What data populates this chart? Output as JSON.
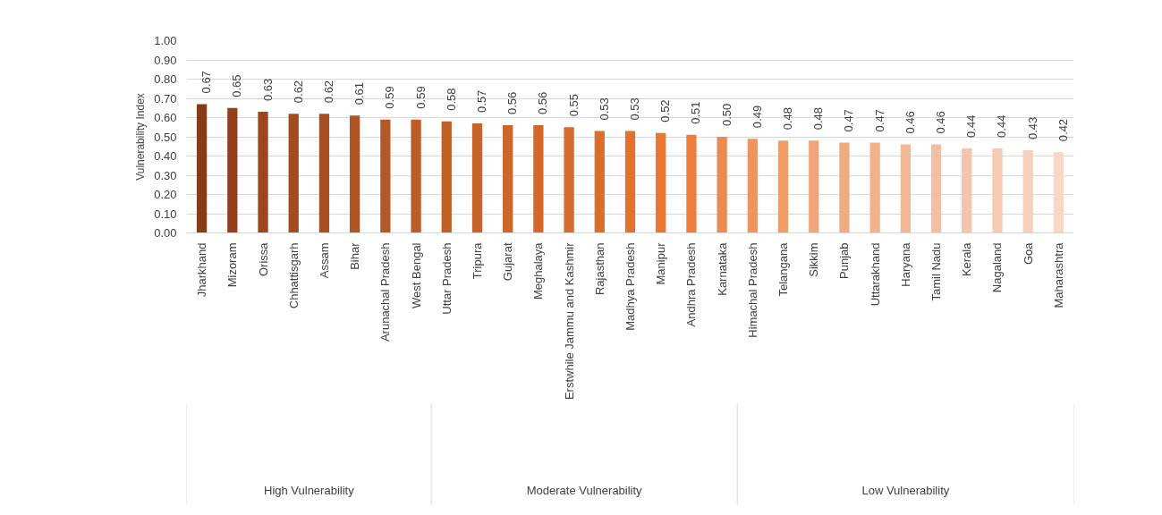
{
  "chart_data": {
    "type": "bar",
    "ylabel": "Vulnerability Index",
    "categories": [
      "Jharkhand",
      "Mizoram",
      "Orissa",
      "Chhattisgarh",
      "Assam",
      "Bihar",
      "Arunachal Pradesh",
      "West Bengal",
      "Uttar Pradesh",
      "Tripura",
      "Gujarat",
      "Meghalaya",
      "Erstwhile Jammu and Kashmir",
      "Rajasthan",
      "Madhya Pradesh",
      "Manipur",
      "Andhra Pradesh",
      "Karnataka",
      "Himachal Pradesh",
      "Telangana",
      "Sikkim",
      "Punjab",
      "Uttarakhand",
      "Haryana",
      "Tamil Nadu",
      "Kerala",
      "Nagaland",
      "Goa",
      "Maharashtra"
    ],
    "values": [
      0.67,
      0.65,
      0.63,
      0.62,
      0.62,
      0.61,
      0.59,
      0.59,
      0.58,
      0.57,
      0.56,
      0.56,
      0.55,
      0.53,
      0.53,
      0.52,
      0.51,
      0.5,
      0.49,
      0.48,
      0.48,
      0.47,
      0.47,
      0.46,
      0.46,
      0.44,
      0.44,
      0.43,
      0.42
    ],
    "value_labels": [
      "0.67",
      "0.65",
      "0.63",
      "0.62",
      "0.62",
      "0.61",
      "0.59",
      "0.59",
      "0.58",
      "0.57",
      "0.56",
      "0.56",
      "0.55",
      "0.53",
      "0.53",
      "0.52",
      "0.51",
      "0.50",
      "0.49",
      "0.48",
      "0.48",
      "0.47",
      "0.47",
      "0.46",
      "0.46",
      "0.44",
      "0.44",
      "0.43",
      "0.42"
    ],
    "colors": [
      "#863c16",
      "#91421c",
      "#9a471e",
      "#a24c20",
      "#a95022",
      "#af5423",
      "#b65825",
      "#bc5c27",
      "#c26028",
      "#c8632a",
      "#ce662a",
      "#d2682b",
      "#d76b2c",
      "#dc6e2d",
      "#e2722d",
      "#e8762e",
      "#ec7d3a",
      "#ed8a52",
      "#ee955f",
      "#ef9d6b",
      "#f0a477",
      "#f1ab82",
      "#f2b18c",
      "#f3b796",
      "#f4bea0",
      "#f5c4aa",
      "#f6cab3",
      "#f7d0bd",
      "#f8d7c8"
    ],
    "ylim": [
      0,
      1.0
    ],
    "yticks": [
      {
        "value": 0,
        "label": "0.00"
      },
      {
        "value": 0.1,
        "label": "0.10"
      },
      {
        "value": 0.2,
        "label": "0.20"
      },
      {
        "value": 0.3,
        "label": "0.30"
      },
      {
        "value": 0.4,
        "label": "0.40"
      },
      {
        "value": 0.5,
        "label": "0.50"
      },
      {
        "value": 0.6,
        "label": "0.60"
      },
      {
        "value": 0.7,
        "label": "0.70"
      },
      {
        "value": 0.8,
        "label": "0.80"
      },
      {
        "value": 0.9,
        "label": "0.90"
      },
      {
        "value": 1.0,
        "label": "1.00"
      }
    ],
    "grid": "y",
    "annotations": [
      "High Vulnerability",
      "Moderate Vulnerability",
      "Low Vulnerability"
    ]
  }
}
